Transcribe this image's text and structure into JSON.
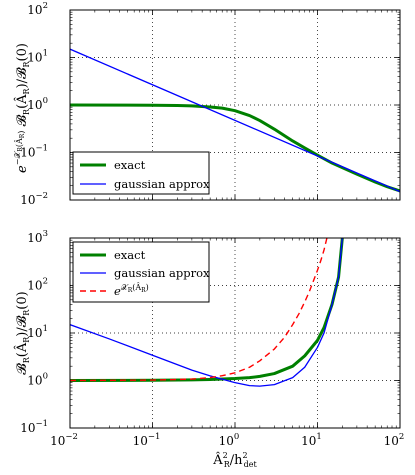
{
  "chart_data": [
    {
      "type": "line",
      "xscale": "log",
      "yscale": "log",
      "xlim": [
        0.01,
        100
      ],
      "ylim": [
        0.01,
        100
      ],
      "grid": true,
      "legend_position": "lower-left",
      "ylabel": "e^{-𝒳_R(Â_R)} 𝓑_R(Â_R)/𝓑_R(0)",
      "x_ticks": [
        0.01,
        0.1,
        1,
        10,
        100
      ],
      "y_ticks": [
        0.01,
        0.1,
        1,
        10,
        100
      ],
      "x_tick_labels": [
        {
          "base": "10",
          "exp": "−2"
        },
        {
          "base": "10",
          "exp": "−1"
        },
        {
          "base": "10",
          "exp": "0"
        },
        {
          "base": "10",
          "exp": "1"
        },
        {
          "base": "10",
          "exp": "2"
        }
      ],
      "y_tick_labels": [
        {
          "base": "10",
          "exp": "−2"
        },
        {
          "base": "10",
          "exp": "−1"
        },
        {
          "base": "10",
          "exp": "0"
        },
        {
          "base": "10",
          "exp": "1"
        },
        {
          "base": "10",
          "exp": "2"
        }
      ],
      "series": [
        {
          "name": "exact",
          "color": "#008000",
          "dash": "solid",
          "width": 3,
          "x": [
            0.01,
            0.05,
            0.1,
            0.2,
            0.3,
            0.5,
            0.7,
            1,
            1.5,
            2,
            3,
            5,
            7,
            10,
            15,
            20,
            30,
            50,
            70,
            100
          ],
          "y": [
            1.0,
            0.995,
            0.99,
            0.975,
            0.96,
            0.91,
            0.86,
            0.76,
            0.6,
            0.47,
            0.31,
            0.175,
            0.125,
            0.088,
            0.06,
            0.048,
            0.035,
            0.024,
            0.019,
            0.0155
          ]
        },
        {
          "name": "gaussian approx",
          "color": "#0000ff",
          "dash": "solid",
          "width": 1.3,
          "x": [
            0.01,
            100
          ],
          "y": [
            15,
            0.015
          ]
        }
      ]
    },
    {
      "type": "line",
      "xscale": "log",
      "yscale": "log",
      "xlim": [
        0.01,
        100
      ],
      "ylim": [
        0.1,
        1000
      ],
      "grid": true,
      "legend_position": "top-left",
      "xlabel": "Â²_R/h²_det",
      "ylabel": "𝓑_R(Â_R)/𝓑_R(0)",
      "x_ticks": [
        0.01,
        0.1,
        1,
        10,
        100
      ],
      "y_ticks": [
        0.1,
        1,
        10,
        100,
        1000
      ],
      "x_tick_labels": [
        {
          "base": "10",
          "exp": "−2"
        },
        {
          "base": "10",
          "exp": "−1"
        },
        {
          "base": "10",
          "exp": "0"
        },
        {
          "base": "10",
          "exp": "1"
        },
        {
          "base": "10",
          "exp": "2"
        }
      ],
      "y_tick_labels": [
        {
          "base": "10",
          "exp": "−1"
        },
        {
          "base": "10",
          "exp": "0"
        },
        {
          "base": "10",
          "exp": "1"
        },
        {
          "base": "10",
          "exp": "2"
        },
        {
          "base": "10",
          "exp": "3"
        }
      ],
      "series": [
        {
          "name": "exact",
          "color": "#008000",
          "dash": "solid",
          "width": 3,
          "x": [
            0.01,
            0.1,
            0.3,
            0.5,
            1,
            1.5,
            2,
            3,
            5,
            7,
            10,
            12,
            15,
            18,
            20
          ],
          "y": [
            1.0,
            1.01,
            1.03,
            1.05,
            1.1,
            1.15,
            1.22,
            1.4,
            2.0,
            3.3,
            7.0,
            13,
            40,
            150,
            1000
          ]
        },
        {
          "name": "gaussian approx",
          "color": "#0000ff",
          "dash": "solid",
          "width": 1.3,
          "x": [
            0.01,
            0.03,
            0.1,
            0.3,
            0.5,
            1,
            1.5,
            2,
            3,
            5,
            7,
            10,
            12,
            15,
            18,
            20
          ],
          "y": [
            15,
            7.5,
            3.4,
            1.65,
            1.25,
            0.9,
            0.78,
            0.76,
            0.82,
            1.15,
            1.9,
            5.0,
            10,
            40,
            150,
            1000
          ]
        },
        {
          "name": "e^{𝒳_R(Â_R)}",
          "color": "#ff0000",
          "dash": "dashed",
          "width": 1.4,
          "x": [
            0.01,
            0.1,
            0.3,
            0.5,
            0.7,
            1,
            1.5,
            2,
            3,
            4,
            5,
            6,
            7,
            8,
            9,
            10,
            11,
            12,
            13
          ],
          "y": [
            1.0,
            1.02,
            1.07,
            1.15,
            1.26,
            1.45,
            1.9,
            2.6,
            4.6,
            8.2,
            15,
            26,
            45,
            76,
            130,
            210,
            340,
            560,
            1000
          ]
        }
      ]
    }
  ]
}
